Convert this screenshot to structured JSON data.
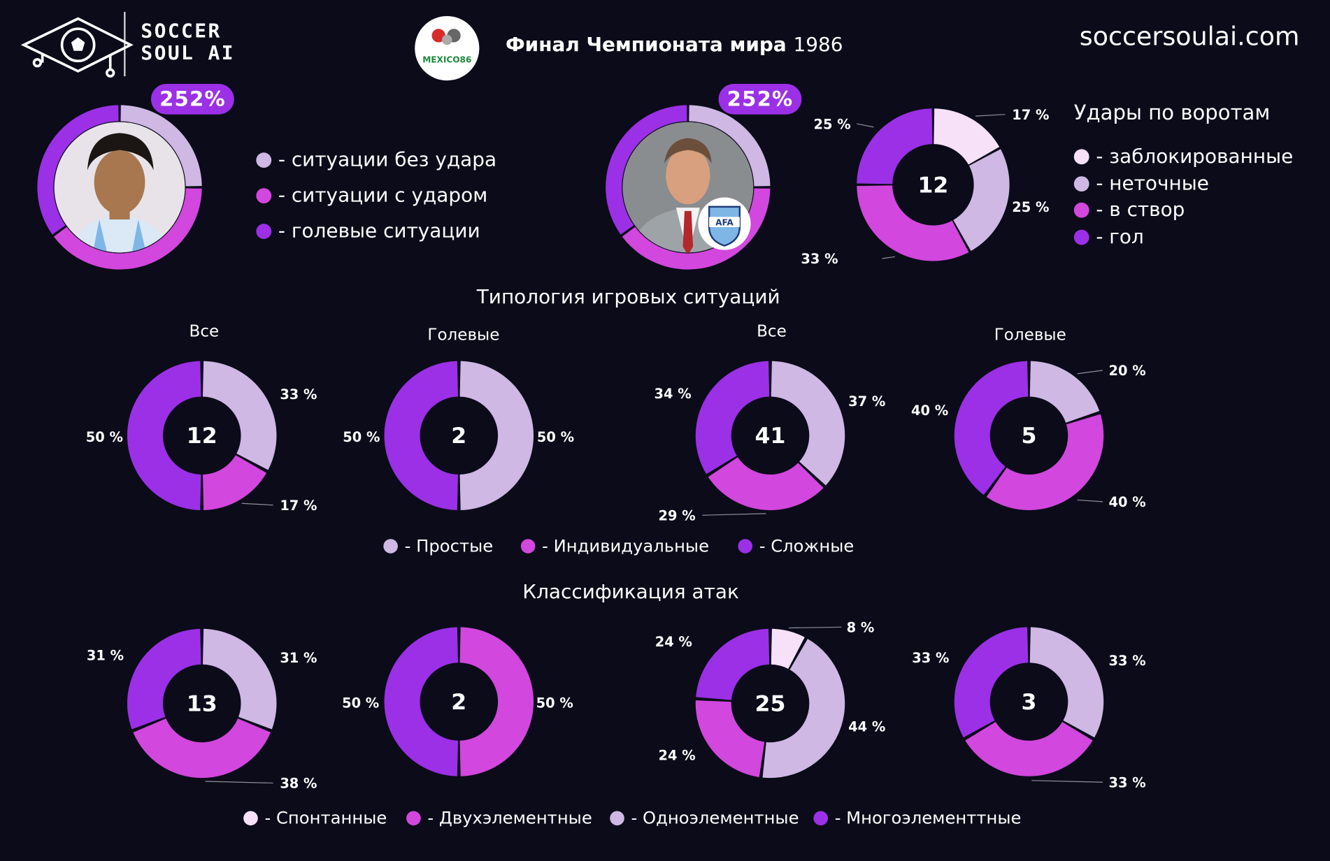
{
  "colors": {
    "background": "#0b0b1a",
    "blocked": "#f6e1f9",
    "simple": "#cfb8e4",
    "individual": "#d247dd",
    "complex": "#9b30e6"
  },
  "header": {
    "brand_line1": "SOCCER",
    "brand_line2": "SOUL AI",
    "title_bold": "Финал Чемпионата мира",
    "title_year": "1986",
    "emblem_text": "MEXICO86",
    "website": "soccersoulai.com"
  },
  "players": {
    "left_pill": "252%",
    "right_pill": "252%",
    "left_avatar": "player-photo",
    "right_avatar": "coach-photo",
    "right_badge": "AFA"
  },
  "situation_legend": [
    {
      "label": "- ситуации без удара",
      "color": "#cfb8e4"
    },
    {
      "label": "- ситуации с ударом",
      "color": "#d247dd"
    },
    {
      "label": "- голевые ситуации",
      "color": "#9b30e6"
    }
  ],
  "shots_legend": {
    "title": "Удары по воротам",
    "items": [
      {
        "label": "- заблокированные",
        "color": "#f6e1f9"
      },
      {
        "label": "- неточные",
        "color": "#cfb8e4"
      },
      {
        "label": "- в створ",
        "color": "#d247dd"
      },
      {
        "label": "- гол",
        "color": "#9b30e6"
      }
    ]
  },
  "sections": {
    "typology_title": "Типология игровых ситуаций",
    "attacks_title": "Классификация атак"
  },
  "subtitles": [
    "Все",
    "Голевые",
    "Все",
    "Голевые"
  ],
  "typology_legend": [
    {
      "label": "- Простые",
      "color": "#cfb8e4"
    },
    {
      "label": "- Индивидуальные",
      "color": "#d247dd"
    },
    {
      "label": "- Сложные",
      "color": "#9b30e6"
    }
  ],
  "attacks_legend": [
    {
      "label": "- Спонтанные",
      "color": "#f6e1f9"
    },
    {
      "label": "- Двухэлементные",
      "color": "#d247dd"
    },
    {
      "label": "- Одноэлементные",
      "color": "#cfb8e4"
    },
    {
      "label": "- Многоэлементтные",
      "color": "#9b30e6"
    }
  ],
  "chart_data": [
    {
      "type": "pie",
      "name": "shots",
      "total": "12",
      "slices": [
        {
          "value": 17,
          "label": "17 %",
          "color": "#f6e1f9"
        },
        {
          "value": 25,
          "label": "25 %",
          "color": "#cfb8e4"
        },
        {
          "value": 33,
          "label": "33 %",
          "color": "#d247dd"
        },
        {
          "value": 25,
          "label": "25 %",
          "color": "#9b30e6"
        }
      ]
    },
    {
      "type": "pie",
      "name": "typology-all-left",
      "total": "12",
      "slices": [
        {
          "value": 33,
          "label": "33 %",
          "color": "#cfb8e4"
        },
        {
          "value": 17,
          "label": "17 %",
          "color": "#d247dd"
        },
        {
          "value": 50,
          "label": "50 %",
          "color": "#9b30e6"
        }
      ]
    },
    {
      "type": "pie",
      "name": "typology-goal-left",
      "total": "2",
      "slices": [
        {
          "value": 50,
          "label": "50 %",
          "color": "#cfb8e4"
        },
        {
          "value": 50,
          "label": "50 %",
          "color": "#9b30e6"
        }
      ]
    },
    {
      "type": "pie",
      "name": "typology-all-right",
      "total": "41",
      "slices": [
        {
          "value": 37,
          "label": "37 %",
          "color": "#cfb8e4"
        },
        {
          "value": 29,
          "label": "29 %",
          "color": "#d247dd"
        },
        {
          "value": 34,
          "label": "34 %",
          "color": "#9b30e6"
        }
      ]
    },
    {
      "type": "pie",
      "name": "typology-goal-right",
      "total": "5",
      "slices": [
        {
          "value": 20,
          "label": "20 %",
          "color": "#cfb8e4"
        },
        {
          "value": 40,
          "label": "40 %",
          "color": "#d247dd"
        },
        {
          "value": 40,
          "label": "40 %",
          "color": "#9b30e6"
        }
      ]
    },
    {
      "type": "pie",
      "name": "attacks-1",
      "total": "13",
      "slices": [
        {
          "value": 31,
          "label": "31 %",
          "color": "#cfb8e4"
        },
        {
          "value": 38,
          "label": "38 %",
          "color": "#d247dd"
        },
        {
          "value": 31,
          "label": "31 %",
          "color": "#9b30e6"
        }
      ]
    },
    {
      "type": "pie",
      "name": "attacks-2",
      "total": "2",
      "slices": [
        {
          "value": 50,
          "label": "50 %",
          "color": "#d247dd"
        },
        {
          "value": 50,
          "label": "50 %",
          "color": "#9b30e6"
        }
      ]
    },
    {
      "type": "pie",
      "name": "attacks-3",
      "total": "25",
      "slices": [
        {
          "value": 8,
          "label": "8 %",
          "color": "#f6e1f9"
        },
        {
          "value": 44,
          "label": "44 %",
          "color": "#cfb8e4"
        },
        {
          "value": 24,
          "label": "24 %",
          "color": "#d247dd"
        },
        {
          "value": 24,
          "label": "24 %",
          "color": "#9b30e6"
        }
      ]
    },
    {
      "type": "pie",
      "name": "attacks-4",
      "total": "3",
      "slices": [
        {
          "value": 33,
          "label": "33 %",
          "color": "#cfb8e4"
        },
        {
          "value": 33,
          "label": "33 %",
          "color": "#d247dd"
        },
        {
          "value": 33,
          "label": "33 %",
          "color": "#9b30e6"
        }
      ]
    },
    {
      "type": "pie",
      "name": "player-ring-left",
      "slices": [
        {
          "value": 25,
          "color": "#cfb8e4"
        },
        {
          "value": 40,
          "color": "#d247dd"
        },
        {
          "value": 35,
          "color": "#9b30e6"
        }
      ]
    },
    {
      "type": "pie",
      "name": "player-ring-right",
      "slices": [
        {
          "value": 25,
          "color": "#cfb8e4"
        },
        {
          "value": 40,
          "color": "#d247dd"
        },
        {
          "value": 35,
          "color": "#9b30e6"
        }
      ]
    }
  ]
}
